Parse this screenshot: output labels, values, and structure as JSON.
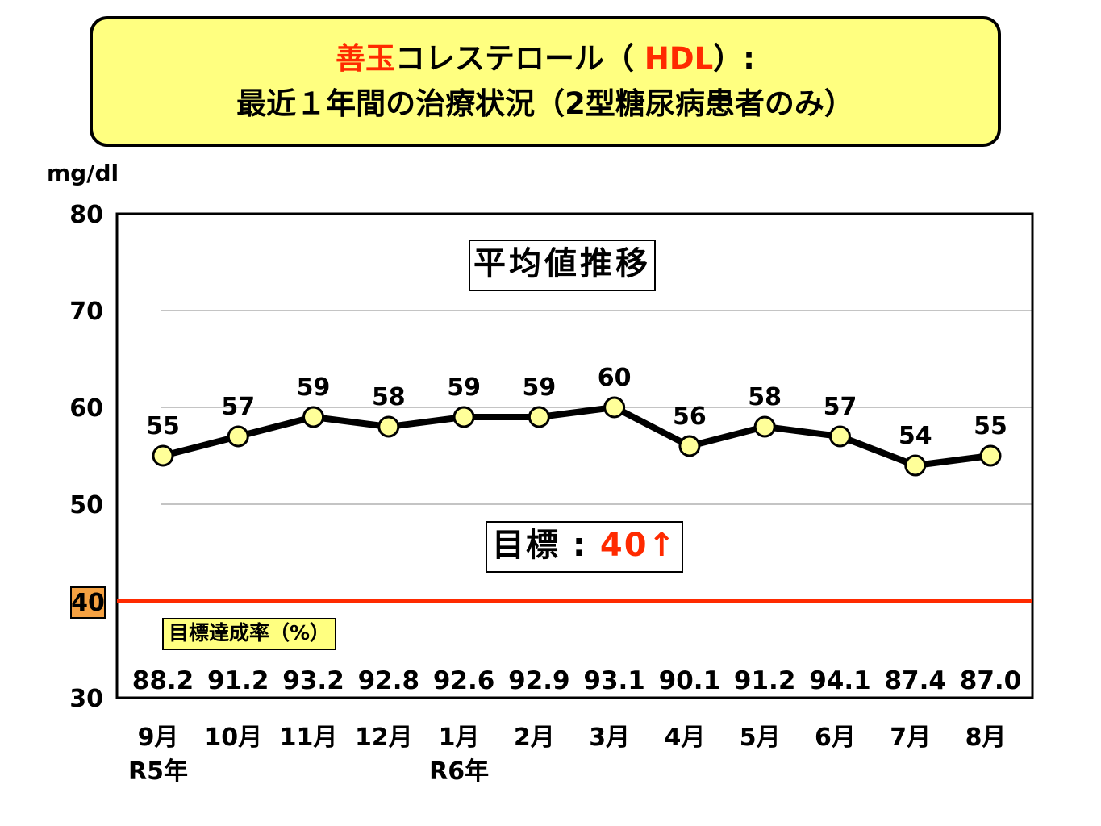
{
  "title": {
    "line1_red_prefix": "善玉",
    "line1_middle": "コレステロール（ ",
    "line1_red_hdl": "HDL",
    "line1_suffix": "）:",
    "line2": "最近１年間の治療状況（2型糖尿病患者のみ）"
  },
  "unit_label": "mg/dl",
  "boxes": {
    "average_label": "平均値推移",
    "goal_prefix": "目標 : ",
    "goal_value": "40↑",
    "achievement_label": "目標達成率（%）"
  },
  "target_line_label": "40",
  "colors": {
    "title_bg": "#ffff80",
    "accent_red": "#ff2a00",
    "marker_fill": "#ffff99",
    "badge_orange": "#f5a142"
  },
  "chart_data": {
    "type": "line",
    "categories": [
      "9月",
      "10月",
      "11月",
      "12月",
      "1月",
      "2月",
      "3月",
      "4月",
      "5月",
      "6月",
      "7月",
      "8月"
    ],
    "year_labels": [
      "R5年",
      "",
      "",
      "",
      "R6年",
      "",
      "",
      "",
      "",
      "",
      "",
      ""
    ],
    "series": [
      {
        "values": [
          55,
          57,
          59,
          58,
          59,
          59,
          60,
          56,
          58,
          57,
          54,
          55
        ]
      }
    ],
    "achievement_rates": [
      "88.2",
      "91.2",
      "93.2",
      "92.8",
      "92.6",
      "92.9",
      "93.1",
      "90.1",
      "91.2",
      "94.1",
      "87.4",
      "87.0"
    ],
    "target_value": 40,
    "ylim": [
      30,
      80
    ],
    "yticks": [
      30,
      40,
      50,
      60,
      70,
      80
    ],
    "ylabel": "mg/dl",
    "grid": true
  }
}
